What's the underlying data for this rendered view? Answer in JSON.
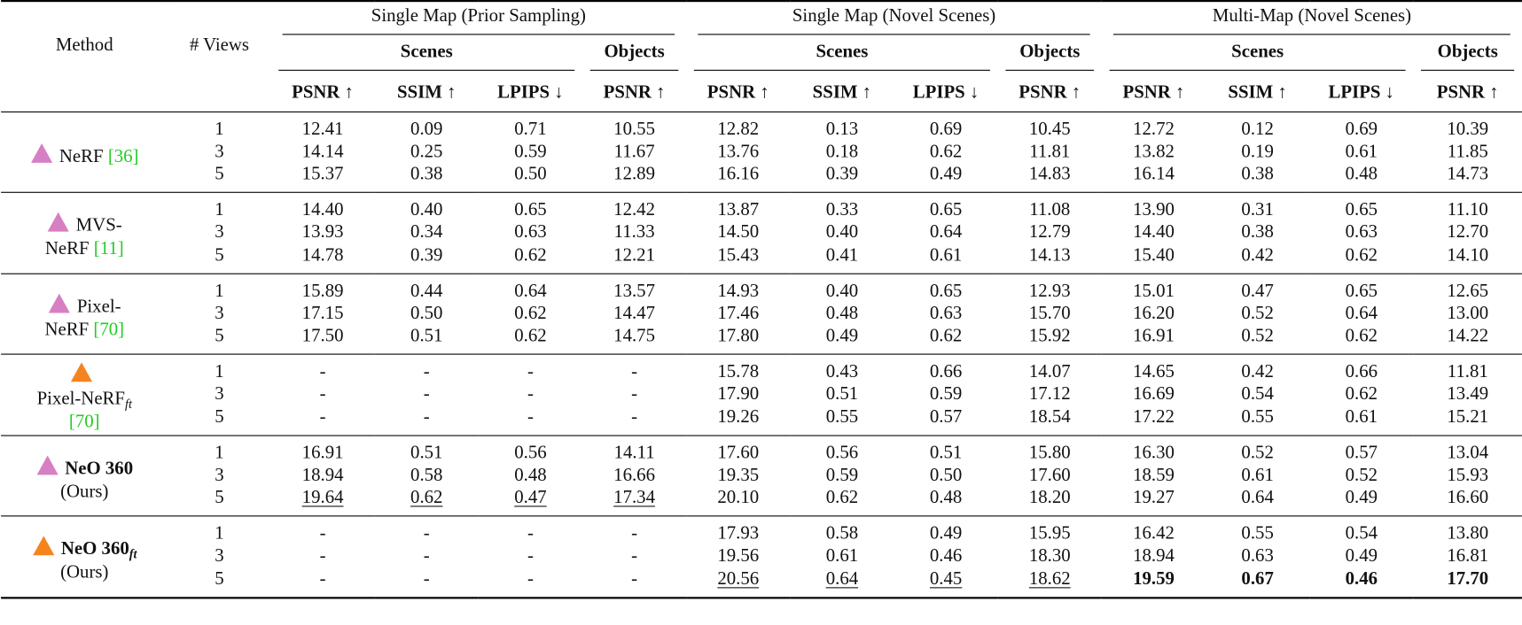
{
  "table": {
    "columns": {
      "method": "Method",
      "views": "# Views",
      "groups": [
        {
          "title": "Single Map (Prior Sampling)",
          "subgroups": [
            {
              "title": "Scenes",
              "metrics": [
                "PSNR ↑",
                "SSIM ↑",
                "LPIPS ↓"
              ]
            },
            {
              "title": "Objects",
              "metrics": [
                "PSNR ↑"
              ]
            }
          ]
        },
        {
          "title": "Single Map (Novel Scenes)",
          "subgroups": [
            {
              "title": "Scenes",
              "metrics": [
                "PSNR ↑",
                "SSIM ↑",
                "LPIPS ↓"
              ]
            },
            {
              "title": "Objects",
              "metrics": [
                "PSNR ↑"
              ]
            }
          ]
        },
        {
          "title": "Multi-Map (Novel Scenes)",
          "subgroups": [
            {
              "title": "Scenes",
              "metrics": [
                "PSNR ↑",
                "SSIM ↑",
                "LPIPS ↓"
              ]
            },
            {
              "title": "Objects",
              "metrics": [
                "PSNR ↑"
              ]
            }
          ]
        }
      ]
    },
    "rows": [
      {
        "method": {
          "name": "NeRF",
          "cite": "[36]",
          "icon_color": "#d77fc3"
        },
        "views": [
          "1",
          "3",
          "5"
        ],
        "values": [
          [
            "12.41",
            "0.09",
            "0.71",
            "10.55",
            "12.82",
            "0.13",
            "0.69",
            "10.45",
            "12.72",
            "0.12",
            "0.69",
            "10.39"
          ],
          [
            "14.14",
            "0.25",
            "0.59",
            "11.67",
            "13.76",
            "0.18",
            "0.62",
            "11.81",
            "13.82",
            "0.19",
            "0.61",
            "11.85"
          ],
          [
            "15.37",
            "0.38",
            "0.50",
            "12.89",
            "16.16",
            "0.39",
            "0.49",
            "14.83",
            "16.14",
            "0.38",
            "0.48",
            "14.73"
          ]
        ]
      },
      {
        "method": {
          "name": "MVS-NeRF",
          "cite": "[11]",
          "icon_color": "#d77fc3"
        },
        "views": [
          "1",
          "3",
          "5"
        ],
        "values": [
          [
            "14.40",
            "0.40",
            "0.65",
            "12.42",
            "13.87",
            "0.33",
            "0.65",
            "11.08",
            "13.90",
            "0.31",
            "0.65",
            "11.10"
          ],
          [
            "13.93",
            "0.34",
            "0.63",
            "11.33",
            "14.50",
            "0.40",
            "0.64",
            "12.79",
            "14.40",
            "0.38",
            "0.63",
            "12.70"
          ],
          [
            "14.78",
            "0.39",
            "0.62",
            "12.21",
            "15.43",
            "0.41",
            "0.61",
            "14.13",
            "15.40",
            "0.42",
            "0.62",
            "14.10"
          ]
        ]
      },
      {
        "method": {
          "name": "Pixel-NeRF",
          "cite": "[70]",
          "icon_color": "#d77fc3"
        },
        "views": [
          "1",
          "3",
          "5"
        ],
        "values": [
          [
            "15.89",
            "0.44",
            "0.64",
            "13.57",
            "14.93",
            "0.40",
            "0.65",
            "12.93",
            "15.01",
            "0.47",
            "0.65",
            "12.65"
          ],
          [
            "17.15",
            "0.50",
            "0.62",
            "14.47",
            "17.46",
            "0.48",
            "0.63",
            "15.70",
            "16.20",
            "0.52",
            "0.64",
            "13.00"
          ],
          [
            "17.50",
            "0.51",
            "0.62",
            "14.75",
            "17.80",
            "0.49",
            "0.62",
            "15.92",
            "16.91",
            "0.52",
            "0.62",
            "14.22"
          ]
        ]
      },
      {
        "method": {
          "name": "Pixel-NeRF",
          "subscript": "ft",
          "cite": "[70]",
          "icon_color": "#f5841f"
        },
        "views": [
          "1",
          "3",
          "5"
        ],
        "values": [
          [
            "-",
            "-",
            "-",
            "-",
            "15.78",
            "0.43",
            "0.66",
            "14.07",
            "14.65",
            "0.42",
            "0.66",
            "11.81"
          ],
          [
            "-",
            "-",
            "-",
            "-",
            "17.90",
            "0.51",
            "0.59",
            "17.12",
            "16.69",
            "0.54",
            "0.62",
            "13.49"
          ],
          [
            "-",
            "-",
            "-",
            "-",
            "19.26",
            "0.55",
            "0.57",
            "18.54",
            "17.22",
            "0.55",
            "0.61",
            "15.21"
          ]
        ]
      },
      {
        "method": {
          "name": "NeO 360",
          "note": "(Ours)",
          "bold": true,
          "icon_color": "#d77fc3"
        },
        "views": [
          "1",
          "3",
          "5"
        ],
        "values": [
          [
            "16.91",
            "0.51",
            "0.56",
            "14.11",
            "17.60",
            "0.56",
            "0.51",
            "15.80",
            "16.30",
            "0.52",
            "0.57",
            "13.04"
          ],
          [
            "18.94",
            "0.58",
            "0.48",
            "16.66",
            "19.35",
            "0.59",
            "0.50",
            "17.60",
            "18.59",
            "0.61",
            "0.52",
            "15.93"
          ],
          [
            "19.64",
            "0.62",
            "0.47",
            "17.34",
            "20.10",
            "0.62",
            "0.48",
            "18.20",
            "19.27",
            "0.64",
            "0.49",
            "16.60"
          ]
        ]
      },
      {
        "method": {
          "name": "NeO 360",
          "subscript": "ft",
          "note": "(Ours)",
          "bold": true,
          "icon_color": "#f5841f"
        },
        "views": [
          "1",
          "3",
          "5"
        ],
        "values": [
          [
            "-",
            "-",
            "-",
            "-",
            "17.93",
            "0.58",
            "0.49",
            "15.95",
            "16.42",
            "0.55",
            "0.54",
            "13.80"
          ],
          [
            "-",
            "-",
            "-",
            "-",
            "19.56",
            "0.61",
            "0.46",
            "18.30",
            "18.94",
            "0.63",
            "0.49",
            "16.81"
          ],
          [
            "-",
            "-",
            "-",
            "-",
            "20.56",
            "0.64",
            "0.45",
            "18.62",
            "19.59",
            "0.67",
            "0.46",
            "17.70"
          ]
        ]
      }
    ]
  }
}
